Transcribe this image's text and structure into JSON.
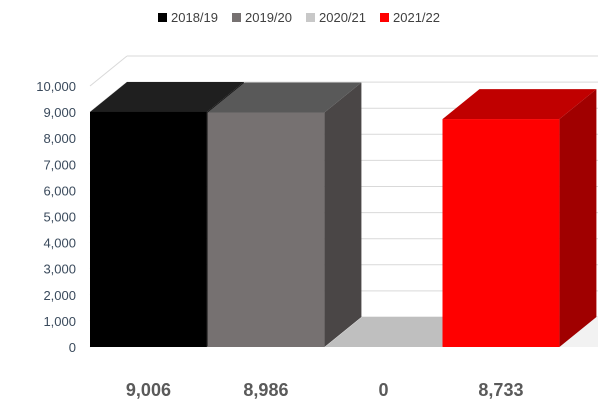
{
  "chart_data": {
    "type": "bar",
    "categories": [
      "2018/19",
      "2019/20",
      "2020/21",
      "2021/22"
    ],
    "values": [
      9006,
      8986,
      0,
      8733
    ],
    "data_labels": [
      "9,006",
      "8,986",
      "0",
      "8,733"
    ],
    "ylim": [
      0,
      10000
    ],
    "yticks": [
      "0",
      "1,000",
      "2,000",
      "3,000",
      "4,000",
      "5,000",
      "6,000",
      "7,000",
      "8,000",
      "9,000",
      "10,000"
    ],
    "legend_position": "top",
    "grid": true,
    "colors": {
      "front": [
        "#000000",
        "#767171",
        "#a6a6a6",
        "#ff0000"
      ],
      "top": [
        "#1f1f1f",
        "#595959",
        "#bfbfbf",
        "#c00000"
      ],
      "side": [
        "#0d0d0d",
        "#4a4646",
        "#8c8c8c",
        "#a00000"
      ]
    },
    "title": "",
    "xlabel": "",
    "ylabel": ""
  },
  "legend": [
    {
      "label": "2018/19",
      "color": "#000000"
    },
    {
      "label": "2019/20",
      "color": "#767171"
    },
    {
      "label": "2020/21",
      "color": "#c8c8c8"
    },
    {
      "label": "2021/22",
      "color": "#ff0000"
    }
  ]
}
